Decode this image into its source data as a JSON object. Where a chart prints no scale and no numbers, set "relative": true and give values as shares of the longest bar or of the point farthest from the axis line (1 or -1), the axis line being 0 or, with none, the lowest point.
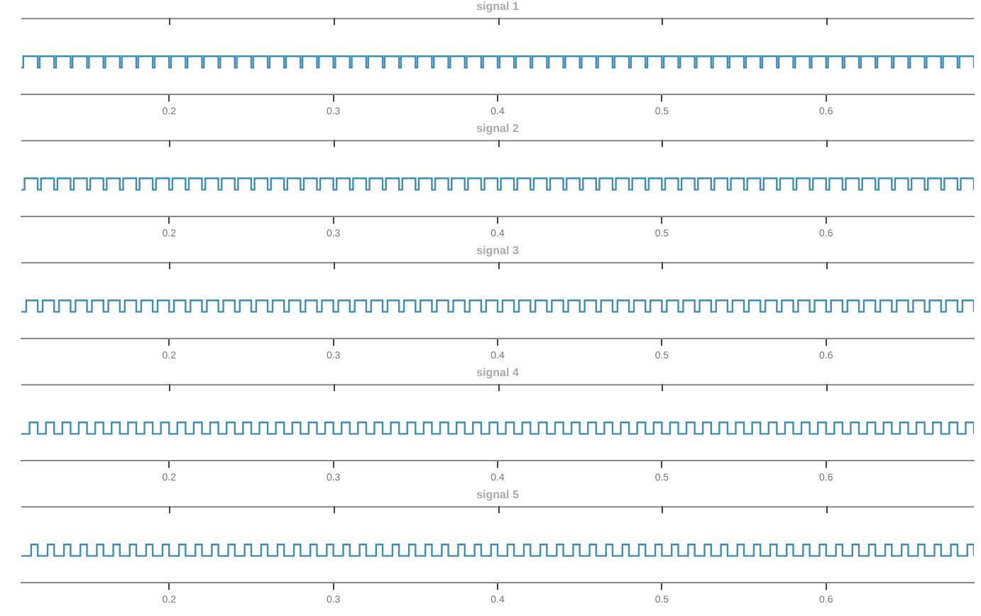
{
  "chart_data": [
    {
      "type": "step",
      "title": "signal 1",
      "color": "#3f8db5",
      "relative": true,
      "xlim": [
        0.11,
        0.69
      ],
      "xticks": [
        0.2,
        0.3,
        0.4,
        0.5,
        0.6
      ],
      "x": [
        0.11,
        0.1112,
        0.12,
        0.1212,
        0.13,
        0.1312,
        0.14,
        0.1412,
        0.15,
        0.1512,
        0.16,
        0.1612,
        0.17,
        0.1712,
        0.18,
        0.1812,
        0.19,
        0.1912,
        0.2,
        0.2012,
        0.21,
        0.2112,
        0.22,
        0.2212,
        0.23,
        0.2312,
        0.24,
        0.2412,
        0.25,
        0.2512,
        0.26,
        0.2612,
        0.27,
        0.2712,
        0.28,
        0.2812,
        0.29,
        0.2912,
        0.3,
        0.3012,
        0.31,
        0.3112,
        0.32,
        0.3212,
        0.33,
        0.3312,
        0.34,
        0.3412,
        0.35,
        0.3512,
        0.36,
        0.3612,
        0.37,
        0.3712,
        0.38,
        0.3812,
        0.39,
        0.3912,
        0.4,
        0.4012,
        0.41,
        0.4112,
        0.42,
        0.4212,
        0.43,
        0.4312,
        0.44,
        0.4412,
        0.45,
        0.4512,
        0.46,
        0.4612,
        0.47,
        0.4712,
        0.48,
        0.4812,
        0.49,
        0.4912,
        0.5,
        0.5012,
        0.51,
        0.5112,
        0.52,
        0.5212,
        0.53,
        0.5312,
        0.54,
        0.5412,
        0.55,
        0.5512,
        0.56,
        0.5612,
        0.57,
        0.5712,
        0.58,
        0.5812,
        0.59,
        0.5912,
        0.6,
        0.6012,
        0.61,
        0.6112,
        0.62,
        0.6212,
        0.63,
        0.6312,
        0.64,
        0.6412,
        0.65,
        0.6512,
        0.66,
        0.6612,
        0.67,
        0.6712,
        0.68,
        0.6812,
        0.69
      ],
      "values": [
        0.7,
        1,
        0.7,
        1,
        0.7,
        1,
        0.7,
        1,
        0.7,
        1,
        0.7,
        1,
        0.7,
        1,
        0.7,
        1,
        0.7,
        1,
        0.7,
        1,
        0.7,
        1,
        0.7,
        1,
        0.7,
        1,
        0.7,
        1,
        0.7,
        1,
        0.7,
        1,
        0.7,
        1,
        0.7,
        1,
        0.7,
        1,
        0.7,
        1,
        0.7,
        1,
        0.7,
        1,
        0.7,
        1,
        0.7,
        1,
        0.7,
        1,
        0.7,
        1,
        0.7,
        1,
        0.7,
        1,
        0.7,
        1,
        0.7,
        1,
        0.7,
        1,
        0.7,
        1,
        0.7,
        1,
        0.7,
        1,
        0.7,
        1,
        0.7,
        1,
        0.7,
        1,
        0.7,
        1,
        0.7,
        1,
        0.7,
        1,
        0.7,
        1,
        0.7,
        1,
        0.7,
        1,
        0.7,
        1,
        0.7,
        1,
        0.7,
        1,
        0.7,
        1,
        0.7,
        1,
        0.7,
        1,
        0.7,
        1,
        0.7,
        1,
        0.7,
        1,
        0.7,
        1,
        0.7,
        1,
        0.7,
        1,
        0.7,
        1,
        0.7,
        1,
        0.7,
        1,
        0.7
      ]
    },
    {
      "type": "step",
      "title": "signal 2",
      "color": "#3f8db5",
      "relative": true,
      "xlim": [
        0.11,
        0.69
      ],
      "xticks": [
        0.2,
        0.3,
        0.4,
        0.5,
        0.6
      ],
      "x": [
        0.11,
        0.112,
        0.12,
        0.122,
        0.13,
        0.132,
        0.14,
        0.142,
        0.15,
        0.152,
        0.16,
        0.162,
        0.17,
        0.172,
        0.18,
        0.182,
        0.19,
        0.192,
        0.2,
        0.202,
        0.21,
        0.212,
        0.22,
        0.222,
        0.23,
        0.232,
        0.24,
        0.242,
        0.25,
        0.252,
        0.26,
        0.262,
        0.27,
        0.272,
        0.28,
        0.282,
        0.29,
        0.292,
        0.3,
        0.302,
        0.31,
        0.312,
        0.32,
        0.322,
        0.33,
        0.332,
        0.34,
        0.342,
        0.35,
        0.352,
        0.36,
        0.362,
        0.37,
        0.372,
        0.38,
        0.382,
        0.39,
        0.392,
        0.4,
        0.402,
        0.41,
        0.412,
        0.42,
        0.422,
        0.43,
        0.432,
        0.44,
        0.442,
        0.45,
        0.452,
        0.46,
        0.462,
        0.47,
        0.472,
        0.48,
        0.482,
        0.49,
        0.492,
        0.5,
        0.502,
        0.51,
        0.512,
        0.52,
        0.522,
        0.53,
        0.532,
        0.54,
        0.542,
        0.55,
        0.552,
        0.56,
        0.562,
        0.57,
        0.572,
        0.58,
        0.582,
        0.59,
        0.592,
        0.6,
        0.602,
        0.61,
        0.612,
        0.62,
        0.622,
        0.63,
        0.632,
        0.64,
        0.642,
        0.65,
        0.652,
        0.66,
        0.662,
        0.67,
        0.672,
        0.68,
        0.682,
        0.69
      ],
      "values": [
        0.7,
        1,
        0.7,
        1,
        0.7,
        1,
        0.7,
        1,
        0.7,
        1,
        0.7,
        1,
        0.7,
        1,
        0.7,
        1,
        0.7,
        1,
        0.7,
        1,
        0.7,
        1,
        0.7,
        1,
        0.7,
        1,
        0.7,
        1,
        0.7,
        1,
        0.7,
        1,
        0.7,
        1,
        0.7,
        1,
        0.7,
        1,
        0.7,
        1,
        0.7,
        1,
        0.7,
        1,
        0.7,
        1,
        0.7,
        1,
        0.7,
        1,
        0.7,
        1,
        0.7,
        1,
        0.7,
        1,
        0.7,
        1,
        0.7,
        1,
        0.7,
        1,
        0.7,
        1,
        0.7,
        1,
        0.7,
        1,
        0.7,
        1,
        0.7,
        1,
        0.7,
        1,
        0.7,
        1,
        0.7,
        1,
        0.7,
        1,
        0.7,
        1,
        0.7,
        1,
        0.7,
        1,
        0.7,
        1,
        0.7,
        1,
        0.7,
        1,
        0.7,
        1,
        0.7,
        1,
        0.7,
        1,
        0.7,
        1,
        0.7,
        1,
        0.7,
        1,
        0.7,
        1,
        0.7,
        1,
        0.7,
        1,
        0.7,
        1,
        0.7,
        1,
        0.7,
        1,
        0.7
      ]
    },
    {
      "type": "step",
      "title": "signal 3",
      "color": "#3f8db5",
      "relative": true,
      "xlim": [
        0.11,
        0.69
      ],
      "xticks": [
        0.2,
        0.3,
        0.4,
        0.5,
        0.6
      ],
      "x": [
        0.11,
        0.113,
        0.12,
        0.123,
        0.13,
        0.133,
        0.14,
        0.143,
        0.15,
        0.153,
        0.16,
        0.163,
        0.17,
        0.173,
        0.18,
        0.183,
        0.19,
        0.193,
        0.2,
        0.203,
        0.21,
        0.213,
        0.22,
        0.223,
        0.23,
        0.233,
        0.24,
        0.243,
        0.25,
        0.253,
        0.26,
        0.263,
        0.27,
        0.273,
        0.28,
        0.283,
        0.29,
        0.293,
        0.3,
        0.303,
        0.31,
        0.313,
        0.32,
        0.323,
        0.33,
        0.333,
        0.34,
        0.343,
        0.35,
        0.353,
        0.36,
        0.363,
        0.37,
        0.373,
        0.38,
        0.383,
        0.39,
        0.393,
        0.4,
        0.403,
        0.41,
        0.413,
        0.42,
        0.423,
        0.43,
        0.433,
        0.44,
        0.443,
        0.45,
        0.453,
        0.46,
        0.463,
        0.47,
        0.473,
        0.48,
        0.483,
        0.49,
        0.493,
        0.5,
        0.503,
        0.51,
        0.513,
        0.52,
        0.523,
        0.53,
        0.533,
        0.54,
        0.543,
        0.55,
        0.553,
        0.56,
        0.563,
        0.57,
        0.573,
        0.58,
        0.583,
        0.59,
        0.593,
        0.6,
        0.603,
        0.61,
        0.613,
        0.62,
        0.623,
        0.63,
        0.633,
        0.64,
        0.643,
        0.65,
        0.653,
        0.66,
        0.663,
        0.67,
        0.673,
        0.68,
        0.683,
        0.69
      ],
      "values": [
        0.7,
        1,
        0.7,
        1,
        0.7,
        1,
        0.7,
        1,
        0.7,
        1,
        0.7,
        1,
        0.7,
        1,
        0.7,
        1,
        0.7,
        1,
        0.7,
        1,
        0.7,
        1,
        0.7,
        1,
        0.7,
        1,
        0.7,
        1,
        0.7,
        1,
        0.7,
        1,
        0.7,
        1,
        0.7,
        1,
        0.7,
        1,
        0.7,
        1,
        0.7,
        1,
        0.7,
        1,
        0.7,
        1,
        0.7,
        1,
        0.7,
        1,
        0.7,
        1,
        0.7,
        1,
        0.7,
        1,
        0.7,
        1,
        0.7,
        1,
        0.7,
        1,
        0.7,
        1,
        0.7,
        1,
        0.7,
        1,
        0.7,
        1,
        0.7,
        1,
        0.7,
        1,
        0.7,
        1,
        0.7,
        1,
        0.7,
        1,
        0.7,
        1,
        0.7,
        1,
        0.7,
        1,
        0.7,
        1,
        0.7,
        1,
        0.7,
        1,
        0.7,
        1,
        0.7,
        1,
        0.7,
        1,
        0.7,
        1,
        0.7,
        1,
        0.7,
        1,
        0.7,
        1,
        0.7,
        1,
        0.7,
        1,
        0.7,
        1,
        0.7,
        1,
        0.7,
        1,
        0.7
      ]
    },
    {
      "type": "step",
      "title": "signal 4",
      "color": "#3f8db5",
      "relative": true,
      "xlim": [
        0.11,
        0.69
      ],
      "xticks": [
        0.2,
        0.3,
        0.4,
        0.5,
        0.6
      ],
      "x": [
        0.11,
        0.115,
        0.12,
        0.125,
        0.13,
        0.135,
        0.14,
        0.145,
        0.15,
        0.155,
        0.16,
        0.165,
        0.17,
        0.175,
        0.18,
        0.185,
        0.19,
        0.195,
        0.2,
        0.205,
        0.21,
        0.215,
        0.22,
        0.225,
        0.23,
        0.235,
        0.24,
        0.245,
        0.25,
        0.255,
        0.26,
        0.265,
        0.27,
        0.275,
        0.28,
        0.285,
        0.29,
        0.295,
        0.3,
        0.305,
        0.31,
        0.315,
        0.32,
        0.325,
        0.33,
        0.335,
        0.34,
        0.345,
        0.35,
        0.355,
        0.36,
        0.365,
        0.37,
        0.375,
        0.38,
        0.385,
        0.39,
        0.395,
        0.4,
        0.405,
        0.41,
        0.415,
        0.42,
        0.425,
        0.43,
        0.435,
        0.44,
        0.445,
        0.45,
        0.455,
        0.46,
        0.465,
        0.47,
        0.475,
        0.48,
        0.485,
        0.49,
        0.495,
        0.5,
        0.505,
        0.51,
        0.515,
        0.52,
        0.525,
        0.53,
        0.535,
        0.54,
        0.545,
        0.55,
        0.555,
        0.56,
        0.565,
        0.57,
        0.575,
        0.58,
        0.585,
        0.59,
        0.595,
        0.6,
        0.605,
        0.61,
        0.615,
        0.62,
        0.625,
        0.63,
        0.635,
        0.64,
        0.645,
        0.65,
        0.655,
        0.66,
        0.665,
        0.67,
        0.675,
        0.68,
        0.685,
        0.69
      ],
      "values": [
        0.7,
        1,
        0.7,
        1,
        0.7,
        1,
        0.7,
        1,
        0.7,
        1,
        0.7,
        1,
        0.7,
        1,
        0.7,
        1,
        0.7,
        1,
        0.7,
        1,
        0.7,
        1,
        0.7,
        1,
        0.7,
        1,
        0.7,
        1,
        0.7,
        1,
        0.7,
        1,
        0.7,
        1,
        0.7,
        1,
        0.7,
        1,
        0.7,
        1,
        0.7,
        1,
        0.7,
        1,
        0.7,
        1,
        0.7,
        1,
        0.7,
        1,
        0.7,
        1,
        0.7,
        1,
        0.7,
        1,
        0.7,
        1,
        0.7,
        1,
        0.7,
        1,
        0.7,
        1,
        0.7,
        1,
        0.7,
        1,
        0.7,
        1,
        0.7,
        1,
        0.7,
        1,
        0.7,
        1,
        0.7,
        1,
        0.7,
        1,
        0.7,
        1,
        0.7,
        1,
        0.7,
        1,
        0.7,
        1,
        0.7,
        1,
        0.7,
        1,
        0.7,
        1,
        0.7,
        1,
        0.7,
        1,
        0.7,
        1,
        0.7,
        1,
        0.7,
        1,
        0.7,
        1,
        0.7,
        1,
        0.7,
        1,
        0.7,
        1,
        0.7,
        1,
        0.7,
        1,
        0.7
      ]
    },
    {
      "type": "step",
      "title": "signal 5",
      "color": "#3f8db5",
      "relative": true,
      "xlim": [
        0.11,
        0.69
      ],
      "xticks": [
        0.2,
        0.3,
        0.4,
        0.5,
        0.6
      ],
      "x": [
        0.11,
        0.116,
        0.12,
        0.126,
        0.13,
        0.136,
        0.14,
        0.146,
        0.15,
        0.156,
        0.16,
        0.166,
        0.17,
        0.176,
        0.18,
        0.186,
        0.19,
        0.196,
        0.2,
        0.206,
        0.21,
        0.216,
        0.22,
        0.226,
        0.23,
        0.236,
        0.24,
        0.246,
        0.25,
        0.256,
        0.26,
        0.266,
        0.27,
        0.276,
        0.28,
        0.286,
        0.29,
        0.296,
        0.3,
        0.306,
        0.31,
        0.316,
        0.32,
        0.326,
        0.33,
        0.336,
        0.34,
        0.346,
        0.35,
        0.356,
        0.36,
        0.366,
        0.37,
        0.376,
        0.38,
        0.386,
        0.39,
        0.396,
        0.4,
        0.406,
        0.41,
        0.416,
        0.42,
        0.426,
        0.43,
        0.436,
        0.44,
        0.446,
        0.45,
        0.456,
        0.46,
        0.466,
        0.47,
        0.476,
        0.48,
        0.486,
        0.49,
        0.496,
        0.5,
        0.506,
        0.51,
        0.516,
        0.52,
        0.526,
        0.53,
        0.536,
        0.54,
        0.546,
        0.55,
        0.556,
        0.56,
        0.566,
        0.57,
        0.576,
        0.58,
        0.586,
        0.59,
        0.596,
        0.6,
        0.606,
        0.61,
        0.616,
        0.62,
        0.626,
        0.63,
        0.636,
        0.64,
        0.646,
        0.65,
        0.656,
        0.66,
        0.666,
        0.67,
        0.676,
        0.68,
        0.686,
        0.69
      ],
      "values": [
        0.7,
        1,
        0.7,
        1,
        0.7,
        1,
        0.7,
        1,
        0.7,
        1,
        0.7,
        1,
        0.7,
        1,
        0.7,
        1,
        0.7,
        1,
        0.7,
        1,
        0.7,
        1,
        0.7,
        1,
        0.7,
        1,
        0.7,
        1,
        0.7,
        1,
        0.7,
        1,
        0.7,
        1,
        0.7,
        1,
        0.7,
        1,
        0.7,
        1,
        0.7,
        1,
        0.7,
        1,
        0.7,
        1,
        0.7,
        1,
        0.7,
        1,
        0.7,
        1,
        0.7,
        1,
        0.7,
        1,
        0.7,
        1,
        0.7,
        1,
        0.7,
        1,
        0.7,
        1,
        0.7,
        1,
        0.7,
        1,
        0.7,
        1,
        0.7,
        1,
        0.7,
        1,
        0.7,
        1,
        0.7,
        1,
        0.7,
        1,
        0.7,
        1,
        0.7,
        1,
        0.7,
        1,
        0.7,
        1,
        0.7,
        1,
        0.7,
        1,
        0.7,
        1,
        0.7,
        1,
        0.7,
        1,
        0.7,
        1,
        0.7,
        1,
        0.7,
        1,
        0.7,
        1,
        0.7,
        1,
        0.7,
        1,
        0.7,
        1,
        0.7,
        1,
        0.7,
        1,
        0.7
      ]
    }
  ]
}
